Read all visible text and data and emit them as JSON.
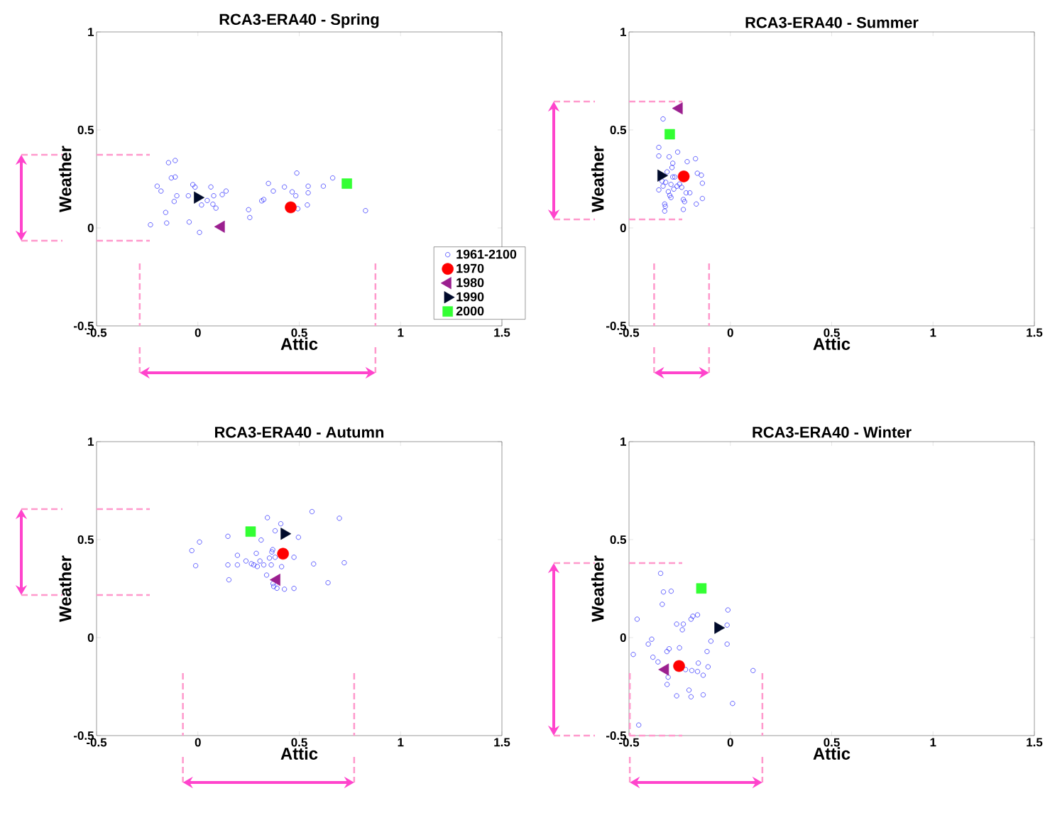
{
  "chart_data": [
    {
      "type": "scatter",
      "title": "RCA3-ERA40 - Spring",
      "xlabel": "Attic",
      "ylabel": "Weather",
      "xlim": [
        -0.5,
        1.5
      ],
      "ylim": [
        -0.5,
        1
      ],
      "xticks": [
        -0.5,
        0,
        0.5,
        1,
        1.5
      ],
      "yticks": [
        -0.5,
        0,
        0.5,
        1
      ],
      "legend": "bottom right",
      "series": [
        {
          "name": "1961-2100",
          "color": "#0000ff",
          "marker": "circle-open",
          "x": [
            -0.145,
            -0.112,
            -0.131,
            -0.112,
            -0.201,
            -0.182,
            -0.104,
            -0.117,
            -0.159,
            -0.234,
            -0.154,
            -0.043,
            0.008,
            -0.047,
            -0.025,
            -0.014,
            0.064,
            0.078,
            0.046,
            0.018,
            0.074,
            0.089,
            0.12,
            0.139,
            0.25,
            0.256,
            0.315,
            0.325,
            0.348,
            0.372,
            0.427,
            0.465,
            0.483,
            0.488,
            0.544,
            0.544,
            0.54,
            0.493,
            0.619,
            0.665,
            0.827
          ],
          "values": [
            0.333,
            0.344,
            0.255,
            0.26,
            0.213,
            0.188,
            0.164,
            0.135,
            0.079,
            0.016,
            0.025,
            0.03,
            -0.023,
            0.164,
            0.221,
            0.208,
            0.209,
            0.164,
            0.14,
            0.117,
            0.121,
            0.101,
            0.17,
            0.188,
            0.093,
            0.053,
            0.138,
            0.145,
            0.227,
            0.188,
            0.209,
            0.184,
            0.164,
            0.28,
            0.213,
            0.179,
            0.117,
            0.098,
            0.213,
            0.255,
            0.088
          ]
        },
        {
          "name": "1970",
          "color": "#ff0000",
          "marker": "circle",
          "x": [
            0.458
          ],
          "values": [
            0.105
          ]
        },
        {
          "name": "1980",
          "color": "#9b1f8f",
          "marker": "triangle-left",
          "x": [
            0.115
          ],
          "values": [
            0.006
          ]
        },
        {
          "name": "1990",
          "color": "#000a2a",
          "marker": "triangle-right",
          "x": [
            -0.002
          ],
          "values": [
            0.155
          ]
        },
        {
          "name": "2000",
          "color": "#33ff33",
          "marker": "square",
          "x": [
            0.735
          ],
          "values": [
            0.226
          ]
        }
      ],
      "ref_lines": [
        {
          "axis": "y",
          "value": -0.065,
          "color": "#ff99cc",
          "line_style": "dashed"
        },
        {
          "axis": "y",
          "value": 0.373,
          "color": "#ff99cc",
          "line_style": "dashed"
        },
        {
          "axis": "x",
          "value": -0.287,
          "color": "#ff99cc",
          "line_style": "dashed"
        },
        {
          "axis": "x",
          "value": 0.876,
          "color": "#ff99cc",
          "line_style": "dashed"
        }
      ]
    },
    {
      "type": "scatter",
      "title": "RCA3-ERA40 - Summer",
      "xlabel": "Attic",
      "ylabel": "Weather",
      "xlim": [
        -0.5,
        1.5
      ],
      "ylim": [
        -0.5,
        1
      ],
      "xticks": [
        -0.5,
        0,
        0.5,
        1,
        1.5
      ],
      "yticks": [
        -0.5,
        0,
        0.5,
        1
      ],
      "series": [
        {
          "color": "#0000ff",
          "marker": "circle-open",
          "x": [
            -0.332,
            -0.353,
            -0.353,
            -0.302,
            -0.26,
            -0.284,
            -0.288,
            -0.213,
            -0.172,
            -0.312,
            -0.284,
            -0.274,
            -0.319,
            -0.337,
            -0.293,
            -0.332,
            -0.353,
            -0.279,
            -0.263,
            -0.251,
            -0.24,
            -0.306,
            -0.299,
            -0.293,
            -0.218,
            -0.2,
            -0.232,
            -0.226,
            -0.163,
            -0.143,
            -0.138,
            -0.138,
            -0.168,
            -0.324,
            -0.321,
            -0.324,
            -0.232
          ],
          "values": [
            0.556,
            0.411,
            0.367,
            0.363,
            0.387,
            0.33,
            0.308,
            0.338,
            0.353,
            0.286,
            0.26,
            0.26,
            0.233,
            0.239,
            0.222,
            0.213,
            0.194,
            0.198,
            0.213,
            0.224,
            0.207,
            0.185,
            0.166,
            0.155,
            0.179,
            0.179,
            0.145,
            0.134,
            0.279,
            0.269,
            0.228,
            0.15,
            0.122,
            0.122,
            0.11,
            0.086,
            0.094
          ]
        },
        {
          "color": "#ff0000",
          "marker": "circle",
          "x": [
            -0.23
          ],
          "values": [
            0.263
          ]
        },
        {
          "color": "#9b1f8f",
          "marker": "triangle-left",
          "x": [
            -0.253
          ],
          "values": [
            0.61
          ]
        },
        {
          "color": "#000a2a",
          "marker": "triangle-right",
          "x": [
            -0.342
          ],
          "values": [
            0.267
          ]
        },
        {
          "color": "#33ff33",
          "marker": "square",
          "x": [
            -0.299
          ],
          "values": [
            0.478
          ]
        }
      ],
      "ref_lines": [
        {
          "axis": "y",
          "value": 0.043,
          "color": "#ff99cc",
          "line_style": "dashed"
        },
        {
          "axis": "y",
          "value": 0.645,
          "color": "#ff99cc",
          "line_style": "dashed"
        },
        {
          "axis": "x",
          "value": -0.376,
          "color": "#ff99cc",
          "line_style": "dashed"
        },
        {
          "axis": "x",
          "value": -0.105,
          "color": "#ff99cc",
          "line_style": "dashed"
        }
      ]
    },
    {
      "type": "scatter",
      "title": "RCA3-ERA40 - Autumn",
      "xlabel": "Attic",
      "ylabel": "Weather",
      "xlim": [
        -0.5,
        1.5
      ],
      "ylim": [
        -0.5,
        1
      ],
      "xticks": [
        -0.5,
        0,
        0.5,
        1,
        1.5
      ],
      "yticks": [
        -0.5,
        0,
        0.5,
        1
      ],
      "series": [
        {
          "color": "#0000ff",
          "marker": "circle-open",
          "x": [
            0.343,
            0.563,
            0.698,
            0.409,
            0.381,
            0.148,
            0.008,
            0.312,
            0.496,
            -0.03,
            0.195,
            0.288,
            0.369,
            0.365,
            0.353,
            0.381,
            0.474,
            -0.011,
            0.148,
            0.195,
            0.237,
            0.264,
            0.276,
            0.293,
            0.306,
            0.325,
            0.362,
            0.413,
            0.571,
            0.722,
            0.153,
            0.339,
            0.371,
            0.374,
            0.39,
            0.427,
            0.474,
            0.642
          ],
          "values": [
            0.612,
            0.643,
            0.609,
            0.581,
            0.545,
            0.517,
            0.488,
            0.498,
            0.512,
            0.444,
            0.42,
            0.43,
            0.449,
            0.437,
            0.406,
            0.41,
            0.41,
            0.367,
            0.371,
            0.371,
            0.391,
            0.377,
            0.371,
            0.363,
            0.391,
            0.371,
            0.371,
            0.362,
            0.376,
            0.382,
            0.295,
            0.319,
            0.276,
            0.261,
            0.252,
            0.247,
            0.251,
            0.28
          ]
        },
        {
          "color": "#ff0000",
          "marker": "circle",
          "x": [
            0.42
          ],
          "values": [
            0.428
          ]
        },
        {
          "color": "#9b1f8f",
          "marker": "triangle-left",
          "x": [
            0.389
          ],
          "values": [
            0.295
          ]
        },
        {
          "color": "#000a2a",
          "marker": "triangle-right",
          "x": [
            0.426
          ],
          "values": [
            0.53
          ]
        },
        {
          "color": "#33ff33",
          "marker": "square",
          "x": [
            0.26
          ],
          "values": [
            0.541
          ]
        }
      ],
      "ref_lines": [
        {
          "axis": "y",
          "value": 0.217,
          "color": "#ff99cc",
          "line_style": "dashed"
        },
        {
          "axis": "y",
          "value": 0.656,
          "color": "#ff99cc",
          "line_style": "dashed"
        },
        {
          "axis": "x",
          "value": -0.074,
          "color": "#ff99cc",
          "line_style": "dashed"
        },
        {
          "axis": "x",
          "value": 0.771,
          "color": "#ff99cc",
          "line_style": "dashed"
        }
      ]
    },
    {
      "type": "scatter",
      "title": "RCA3-ERA40 - Winter",
      "xlabel": "Attic",
      "ylabel": "Weather",
      "xlim": [
        -0.5,
        1.5
      ],
      "ylim": [
        -0.5,
        1
      ],
      "xticks": [
        -0.5,
        0,
        0.5,
        1,
        1.5
      ],
      "yticks": [
        -0.5,
        0,
        0.5,
        1
      ],
      "series": [
        {
          "color": "#0000ff",
          "marker": "circle-open",
          "x": [
            -0.344,
            -0.33,
            -0.292,
            -0.336,
            -0.46,
            -0.265,
            -0.232,
            -0.237,
            -0.194,
            -0.185,
            -0.162,
            -0.012,
            -0.016,
            -0.096,
            -0.016,
            -0.388,
            -0.405,
            -0.479,
            -0.382,
            -0.313,
            -0.302,
            -0.251,
            -0.115,
            -0.357,
            -0.158,
            -0.11,
            -0.221,
            -0.19,
            -0.162,
            -0.134,
            0.112,
            -0.307,
            -0.312,
            -0.204,
            -0.265,
            -0.194,
            -0.134,
            0.011,
            -0.452
          ],
          "values": [
            0.328,
            0.233,
            0.237,
            0.17,
            0.094,
            0.069,
            0.069,
            0.04,
            0.094,
            0.109,
            0.116,
            0.141,
            0.064,
            -0.018,
            -0.033,
            -0.008,
            -0.033,
            -0.086,
            -0.1,
            -0.071,
            -0.057,
            -0.052,
            -0.071,
            -0.124,
            -0.13,
            -0.149,
            -0.163,
            -0.168,
            -0.173,
            -0.192,
            -0.168,
            -0.202,
            -0.239,
            -0.268,
            -0.297,
            -0.302,
            -0.292,
            -0.336,
            -0.446
          ]
        },
        {
          "color": "#ff0000",
          "marker": "circle",
          "x": [
            -0.253
          ],
          "values": [
            -0.145
          ]
        },
        {
          "color": "#9b1f8f",
          "marker": "triangle-left",
          "x": [
            -0.321
          ],
          "values": [
            -0.163
          ]
        },
        {
          "color": "#000a2a",
          "marker": "triangle-right",
          "x": [
            -0.061
          ],
          "values": [
            0.05
          ]
        },
        {
          "color": "#33ff33",
          "marker": "square",
          "x": [
            -0.143
          ],
          "values": [
            0.251
          ]
        }
      ],
      "ref_lines": [
        {
          "axis": "y",
          "value": -0.5,
          "color": "#ff99cc",
          "line_style": "dashed"
        },
        {
          "axis": "y",
          "value": 0.38,
          "color": "#ff99cc",
          "line_style": "dashed"
        },
        {
          "axis": "x",
          "value": -0.496,
          "color": "#ff99cc",
          "line_style": "dashed"
        },
        {
          "axis": "x",
          "value": 0.158,
          "color": "#ff99cc",
          "line_style": "dashed"
        }
      ]
    }
  ]
}
